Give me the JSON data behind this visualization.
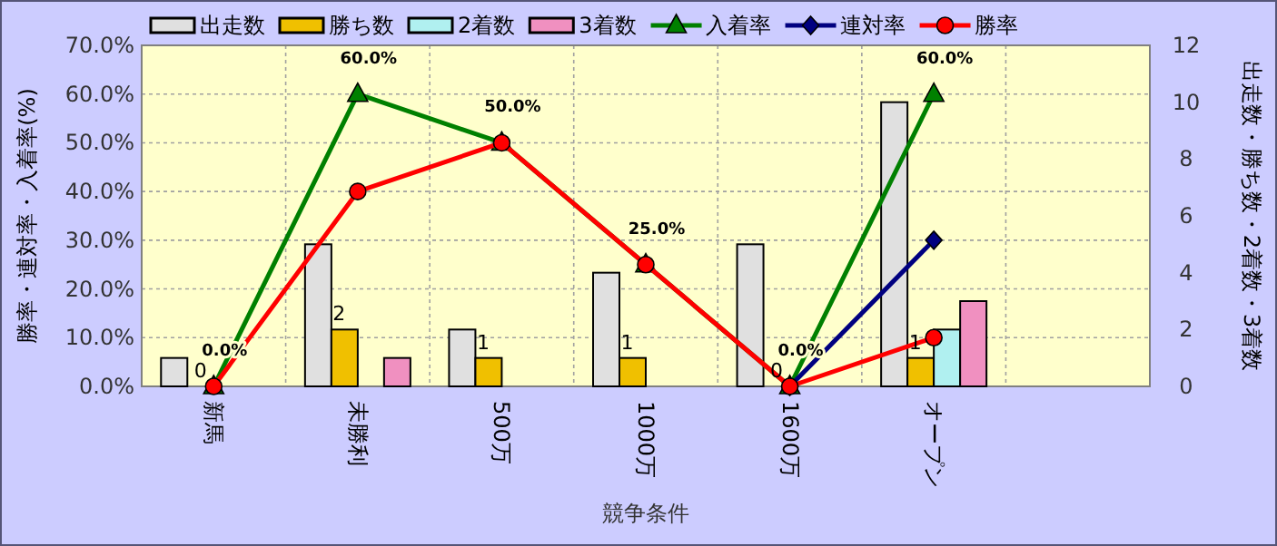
{
  "chart_data": {
    "type": "bar",
    "categories": [
      "新馬",
      "未勝利",
      "500万",
      "1000万",
      "1600万",
      "オープン",
      null
    ],
    "xlabel": "競争条件",
    "ylabel": "勝率・連対率・入着率(%)",
    "y2label": "出走数・勝ち数・2着数・3着数",
    "ylim": [
      0,
      70
    ],
    "yticks": [
      {
        "value": 0,
        "label": "0.0%"
      },
      {
        "value": 10,
        "label": "10.0%"
      },
      {
        "value": 20,
        "label": "20.0%"
      },
      {
        "value": 30,
        "label": "30.0%"
      },
      {
        "value": 40,
        "label": "40.0%"
      },
      {
        "value": 50,
        "label": "50.0%"
      },
      {
        "value": 60,
        "label": "60.0%"
      },
      {
        "value": 70,
        "label": "70.0%"
      }
    ],
    "y2lim": [
      0,
      12
    ],
    "y2ticks": [
      0,
      2,
      4,
      6,
      8,
      10,
      12
    ],
    "grid": true,
    "legend": "top",
    "series": [
      {
        "name": "出走数",
        "type": "bar",
        "axis": "y2",
        "color": "#e0e0e0",
        "values": [
          1,
          5,
          2,
          4,
          5,
          10,
          null
        ]
      },
      {
        "name": "勝ち数",
        "type": "bar",
        "axis": "y2",
        "color": "#f0c000",
        "values": [
          0,
          2,
          1,
          1,
          0,
          1,
          null
        ],
        "value_labels": [
          "0",
          "2",
          "1",
          "1",
          "0",
          "1",
          null
        ]
      },
      {
        "name": "2着数",
        "type": "bar",
        "axis": "y2",
        "color": "#b0f0f0",
        "values": [
          0,
          0,
          0,
          0,
          0,
          2,
          null
        ]
      },
      {
        "name": "3着数",
        "type": "bar",
        "axis": "y2",
        "color": "#f090c0",
        "values": [
          0,
          1,
          0,
          0,
          0,
          3,
          null
        ]
      },
      {
        "name": "入着率",
        "type": "line",
        "color": "#008000",
        "marker": "triangle",
        "values": [
          0,
          60,
          50,
          25,
          0,
          60,
          null
        ],
        "value_labels": [
          "0.0%",
          "60.0%",
          "50.0%",
          "25.0%",
          "0.0%",
          "60.0%",
          null
        ]
      },
      {
        "name": "連対率",
        "type": "line",
        "color": "#000080",
        "marker": "diamond",
        "values": [
          null,
          null,
          null,
          null,
          0,
          30,
          null
        ]
      },
      {
        "name": "勝率",
        "type": "line",
        "color": "#ff0000",
        "marker": "circle",
        "values": [
          0,
          40,
          50,
          25,
          0,
          10,
          null
        ]
      }
    ]
  }
}
